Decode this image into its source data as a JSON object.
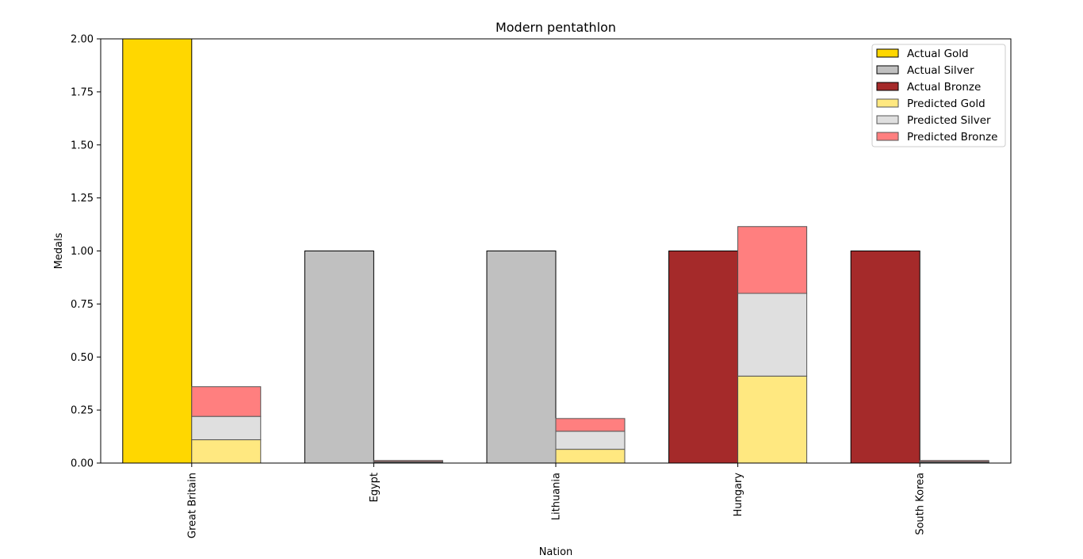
{
  "chart_data": {
    "type": "bar",
    "title": "Modern pentathlon",
    "xlabel": "Nation",
    "ylabel": "Medals",
    "ylim": [
      0,
      2.0
    ],
    "yticks": [
      "0.00",
      "0.25",
      "0.50",
      "0.75",
      "1.00",
      "1.25",
      "1.50",
      "1.75",
      "2.00"
    ],
    "categories": [
      "Great Britain",
      "Egypt",
      "Lithuania",
      "Hungary",
      "South Korea"
    ],
    "grid": false,
    "legend_position": "top-right",
    "actual": [
      {
        "name": "Actual Gold",
        "color": "#FFD700",
        "values": [
          2,
          0,
          0,
          0,
          0
        ]
      },
      {
        "name": "Actual Silver",
        "color": "#C0C0C0",
        "values": [
          0,
          1,
          1,
          0,
          0
        ]
      },
      {
        "name": "Actual Bronze",
        "color": "#A52A2A",
        "values": [
          0,
          0,
          0,
          1,
          1
        ]
      }
    ],
    "predicted": [
      {
        "name": "Predicted Gold",
        "color": "#FFE880",
        "values": [
          0.11,
          0.003,
          0.065,
          0.41,
          0.003
        ]
      },
      {
        "name": "Predicted Silver",
        "color": "#DFDFDF",
        "values": [
          0.11,
          0.004,
          0.085,
          0.39,
          0.004
        ]
      },
      {
        "name": "Predicted Bronze",
        "color": "#FF7F7F",
        "values": [
          0.14,
          0.005,
          0.06,
          0.315,
          0.005
        ]
      }
    ]
  }
}
